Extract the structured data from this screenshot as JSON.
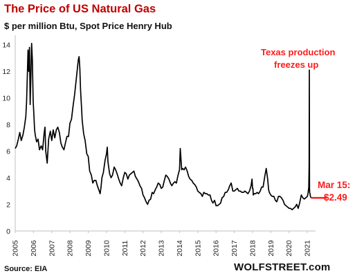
{
  "chart_data": {
    "type": "line",
    "title": "The Price of US Natural Gas",
    "subtitle": "$ per million Btu, Spot Price Henry Hub",
    "source": "Source: EIA",
    "brand": "WOLFSTREET.com",
    "ylim": [
      0,
      14.5
    ],
    "xlim": [
      2005.0,
      2021.3
    ],
    "y_ticks": [
      "0",
      "2",
      "4",
      "6",
      "8",
      "10",
      "12",
      "14"
    ],
    "x_ticks": [
      "2005",
      "2006",
      "2007",
      "2008",
      "2009",
      "2010",
      "2011",
      "2012",
      "2013",
      "2014",
      "2015",
      "2016",
      "2017",
      "2018",
      "2019",
      "2020",
      "2021"
    ],
    "grid": false,
    "colors": {
      "line": "#000000",
      "title": "#c00000",
      "annotation": "#ff1a1a"
    },
    "annotations": {
      "spike_line1": "Texas production",
      "spike_line2": "freezes up",
      "last_line1": "Mar 15:",
      "last_line2": "$2.49"
    },
    "last_value": 2.49,
    "series": [
      {
        "x": [
          2005.0,
          2005.08,
          2005.17,
          2005.25,
          2005.33,
          2005.42,
          2005.5,
          2005.58,
          2005.62,
          2005.66,
          2005.7,
          2005.74,
          2005.78,
          2005.82,
          2005.86,
          2005.9,
          2005.94,
          2005.98,
          2006.02,
          2006.06,
          2006.1,
          2006.17,
          2006.25,
          2006.33,
          2006.42,
          2006.5,
          2006.58,
          2006.63,
          2006.67,
          2006.75,
          2006.83,
          2006.92,
          2007.0,
          2007.08,
          2007.17,
          2007.25,
          2007.33,
          2007.42,
          2007.5,
          2007.58,
          2007.67,
          2007.75,
          2007.83,
          2007.92,
          2008.0,
          2008.08,
          2008.17,
          2008.25,
          2008.33,
          2008.42,
          2008.46,
          2008.5,
          2008.54,
          2008.58,
          2008.63,
          2008.67,
          2008.75,
          2008.83,
          2008.92,
          2009.0,
          2009.08,
          2009.17,
          2009.25,
          2009.33,
          2009.42,
          2009.5,
          2009.58,
          2009.65,
          2009.7,
          2009.75,
          2009.83,
          2009.92,
          2010.0,
          2010.04,
          2010.08,
          2010.17,
          2010.25,
          2010.33,
          2010.42,
          2010.5,
          2010.58,
          2010.67,
          2010.75,
          2010.83,
          2010.92,
          2011.0,
          2011.08,
          2011.17,
          2011.25,
          2011.33,
          2011.42,
          2011.5,
          2011.58,
          2011.67,
          2011.75,
          2011.83,
          2011.92,
          2012.0,
          2012.08,
          2012.17,
          2012.25,
          2012.33,
          2012.42,
          2012.5,
          2012.58,
          2012.67,
          2012.75,
          2012.83,
          2012.92,
          2013.0,
          2013.08,
          2013.17,
          2013.25,
          2013.33,
          2013.42,
          2013.5,
          2013.58,
          2013.67,
          2013.75,
          2013.83,
          2013.92,
          2014.0,
          2014.04,
          2014.08,
          2014.12,
          2014.17,
          2014.25,
          2014.33,
          2014.42,
          2014.5,
          2014.58,
          2014.67,
          2014.75,
          2014.83,
          2014.92,
          2015.0,
          2015.08,
          2015.17,
          2015.25,
          2015.33,
          2015.42,
          2015.5,
          2015.58,
          2015.67,
          2015.75,
          2015.83,
          2015.92,
          2016.0,
          2016.08,
          2016.17,
          2016.25,
          2016.33,
          2016.42,
          2016.5,
          2016.58,
          2016.67,
          2016.75,
          2016.83,
          2016.92,
          2017.0,
          2017.08,
          2017.17,
          2017.25,
          2017.33,
          2017.42,
          2017.5,
          2017.58,
          2017.67,
          2017.75,
          2017.83,
          2017.92,
          2017.97,
          2018.0,
          2018.02,
          2018.04,
          2018.08,
          2018.17,
          2018.25,
          2018.33,
          2018.42,
          2018.5,
          2018.58,
          2018.67,
          2018.75,
          2018.83,
          2018.88,
          2018.92,
          2019.0,
          2019.08,
          2019.17,
          2019.25,
          2019.33,
          2019.42,
          2019.5,
          2019.58,
          2019.67,
          2019.75,
          2019.83,
          2019.92,
          2020.0,
          2020.08,
          2020.17,
          2020.25,
          2020.33,
          2020.42,
          2020.5,
          2020.58,
          2020.67,
          2020.75,
          2020.83,
          2020.92,
          2021.0,
          2021.04,
          2021.08,
          2021.1,
          2021.11,
          2021.12,
          2021.13,
          2021.15,
          2021.17,
          2021.2
        ],
        "values": [
          6.2,
          6.4,
          6.9,
          7.4,
          6.8,
          7.2,
          7.8,
          8.6,
          9.7,
          11.5,
          13.6,
          12.0,
          13.8,
          9.5,
          11.8,
          14.1,
          12.8,
          9.8,
          8.8,
          7.6,
          7.2,
          6.7,
          6.9,
          6.1,
          6.4,
          6.1,
          7.3,
          7.8,
          6.0,
          5.1,
          6.9,
          7.5,
          6.8,
          7.6,
          7.0,
          7.6,
          7.8,
          7.4,
          6.6,
          6.3,
          6.1,
          6.6,
          7.1,
          7.1,
          8.1,
          8.4,
          9.4,
          10.2,
          11.2,
          12.4,
          12.9,
          13.1,
          12.2,
          10.6,
          9.3,
          8.3,
          7.3,
          6.8,
          5.8,
          5.6,
          4.5,
          4.2,
          3.6,
          3.8,
          3.8,
          3.4,
          3.1,
          2.8,
          3.3,
          4.0,
          4.4,
          5.3,
          5.8,
          6.3,
          5.2,
          4.3,
          4.0,
          4.2,
          4.8,
          4.6,
          4.3,
          3.9,
          3.6,
          3.4,
          4.0,
          4.4,
          4.3,
          3.9,
          4.2,
          4.3,
          4.4,
          4.5,
          4.1,
          3.9,
          3.7,
          3.4,
          3.2,
          2.7,
          2.5,
          2.2,
          2.0,
          2.3,
          2.4,
          2.9,
          2.8,
          3.1,
          3.3,
          3.6,
          3.5,
          3.2,
          3.3,
          3.8,
          4.2,
          4.1,
          3.9,
          3.6,
          3.4,
          3.6,
          3.7,
          3.6,
          4.2,
          4.6,
          6.2,
          5.4,
          4.6,
          4.7,
          4.6,
          4.8,
          4.5,
          4.1,
          3.9,
          3.8,
          3.6,
          3.5,
          3.3,
          3.0,
          2.9,
          2.8,
          2.6,
          2.9,
          2.8,
          2.8,
          2.7,
          2.7,
          2.3,
          2.1,
          2.3,
          1.9,
          1.9,
          2.0,
          2.1,
          2.5,
          2.6,
          2.9,
          2.9,
          3.1,
          3.4,
          3.6,
          3.0,
          3.0,
          3.1,
          3.2,
          3.0,
          3.0,
          2.9,
          2.9,
          3.0,
          2.9,
          2.8,
          3.0,
          3.4,
          3.9,
          3.2,
          3.2,
          2.7,
          2.8,
          2.8,
          2.9,
          2.8,
          3.0,
          3.3,
          3.3,
          4.1,
          4.7,
          3.9,
          3.1,
          2.9,
          2.7,
          2.6,
          2.6,
          2.3,
          2.2,
          2.6,
          2.6,
          2.5,
          2.3,
          2.0,
          1.9,
          1.8,
          1.7,
          1.7,
          1.6,
          1.7,
          1.8,
          2.0,
          1.7,
          2.1,
          2.7,
          2.5,
          2.4,
          2.5,
          2.6,
          2.8,
          3.3,
          5.0,
          12.1,
          3.2,
          2.9,
          2.8,
          2.6,
          2.49
        ]
      }
    ]
  }
}
